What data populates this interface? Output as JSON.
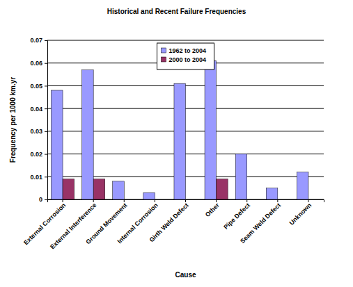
{
  "chart_data": {
    "type": "bar",
    "title": "Historical and Recent Failure Frequencies",
    "x_label": "Cause",
    "y_label": "Frequency per 1000 km.yr",
    "categories": [
      "External Corrosion",
      "External Interference",
      "Ground Movement",
      "Internal Corrosion",
      "Girth Weld Defect",
      "Other",
      "Pipe Defect",
      "Seam Weld Defect",
      "Unknown"
    ],
    "series": [
      {
        "name": "1962 to 2004",
        "color": "#9999ff",
        "values": [
          0.048,
          0.057,
          0.008,
          0.003,
          0.051,
          0.061,
          0.02,
          0.005,
          0.012
        ]
      },
      {
        "name": "2000 to 2004",
        "color": "#993366",
        "values": [
          0.009,
          0.009,
          0,
          0,
          0,
          0.009,
          0,
          0,
          0
        ]
      }
    ],
    "ylim": [
      0,
      0.07
    ],
    "yticks": [
      0,
      0.01,
      0.02,
      0.03,
      0.04,
      0.05,
      0.06,
      0.07
    ],
    "grid": true,
    "legend": "top"
  }
}
